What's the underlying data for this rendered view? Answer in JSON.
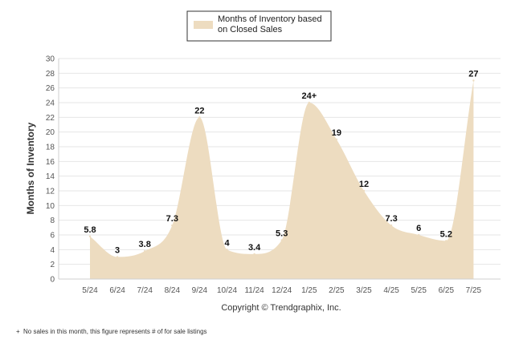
{
  "chart_data": {
    "type": "area",
    "categories": [
      "5/24",
      "6/24",
      "7/24",
      "8/24",
      "9/24",
      "10/24",
      "11/24",
      "12/24",
      "1/25",
      "2/25",
      "3/25",
      "4/25",
      "5/25",
      "6/25",
      "7/25"
    ],
    "series": [
      {
        "name": "Months of Inventory based on Closed Sales",
        "values": [
          5.8,
          3,
          3.8,
          7.3,
          22,
          4,
          3.4,
          5.3,
          24,
          19,
          12,
          7.3,
          6,
          5.2,
          27
        ],
        "labels": [
          "5.8",
          "3",
          "3.8",
          "7.3",
          "22",
          "4",
          "3.4",
          "5.3",
          "24+",
          "19",
          "12",
          "7.3",
          "6",
          "5.2",
          "27"
        ]
      }
    ],
    "legend": {
      "lines": [
        "Months of Inventory based",
        "on Closed Sales"
      ],
      "position": "top-center"
    },
    "ylabel": "Months of Inventory",
    "xlabel": "",
    "ylim": [
      0,
      30
    ],
    "yticks": [
      0,
      2,
      4,
      6,
      8,
      10,
      12,
      14,
      16,
      18,
      20,
      22,
      24,
      26,
      28,
      30
    ],
    "grid": true,
    "credit": "Copyright © Trendgraphix, Inc.",
    "footnote": "No sales in this month, this figure represents # of for sale listings",
    "footnote_marker": "+",
    "colors": {
      "fill": "#eddcc0",
      "grid": "#e6e6e6",
      "legend_border": "#333333"
    }
  }
}
